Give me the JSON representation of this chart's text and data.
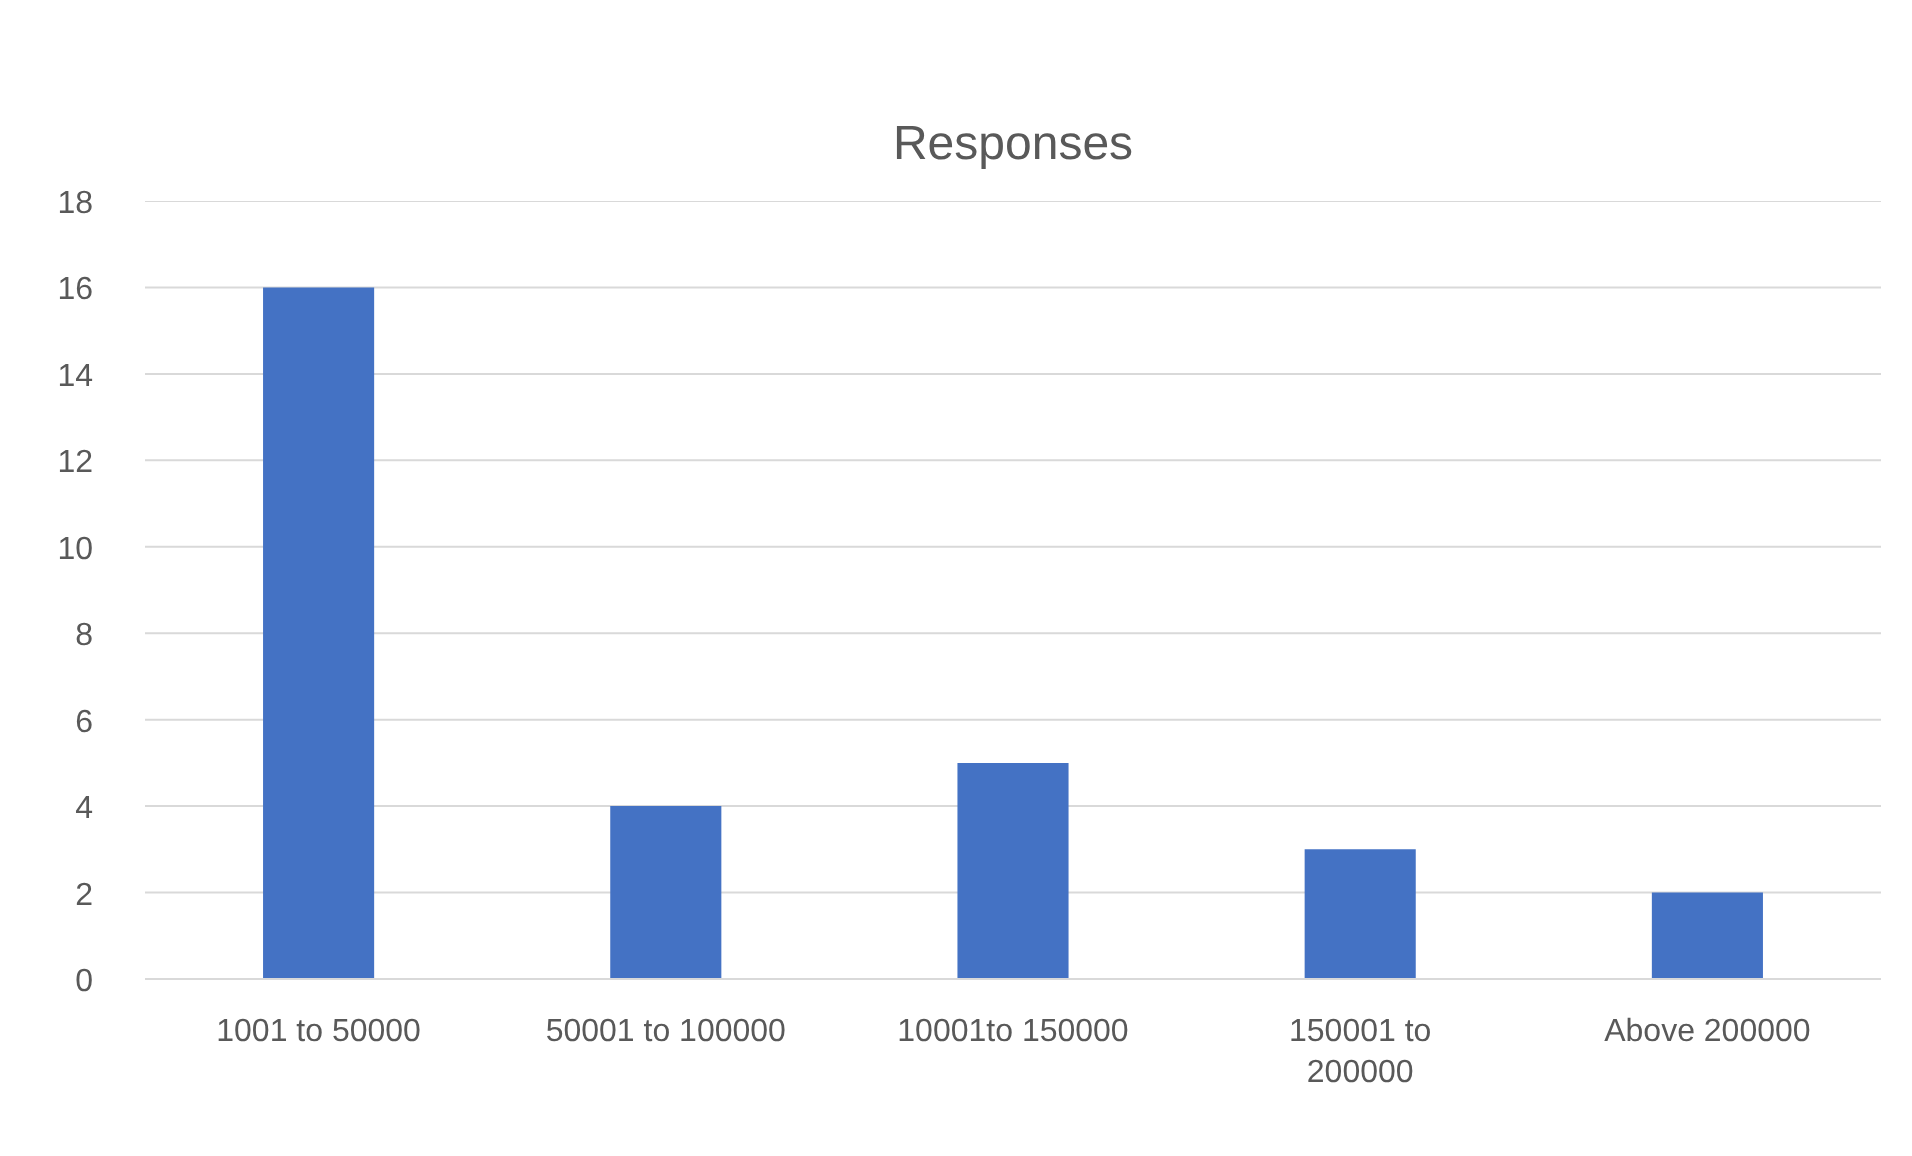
{
  "chart_data": {
    "type": "bar",
    "title": "Responses",
    "categories": [
      "1001 to 50000",
      "50001 to 100000",
      "10001to 150000",
      "150001 to 200000",
      "Above 200000"
    ],
    "values": [
      16,
      4,
      5,
      3,
      2
    ],
    "color": "#4472c4",
    "ylim": [
      0,
      18
    ],
    "yticks": [
      0,
      2,
      4,
      6,
      8,
      10,
      12,
      14,
      16,
      18
    ],
    "grid": "y"
  }
}
